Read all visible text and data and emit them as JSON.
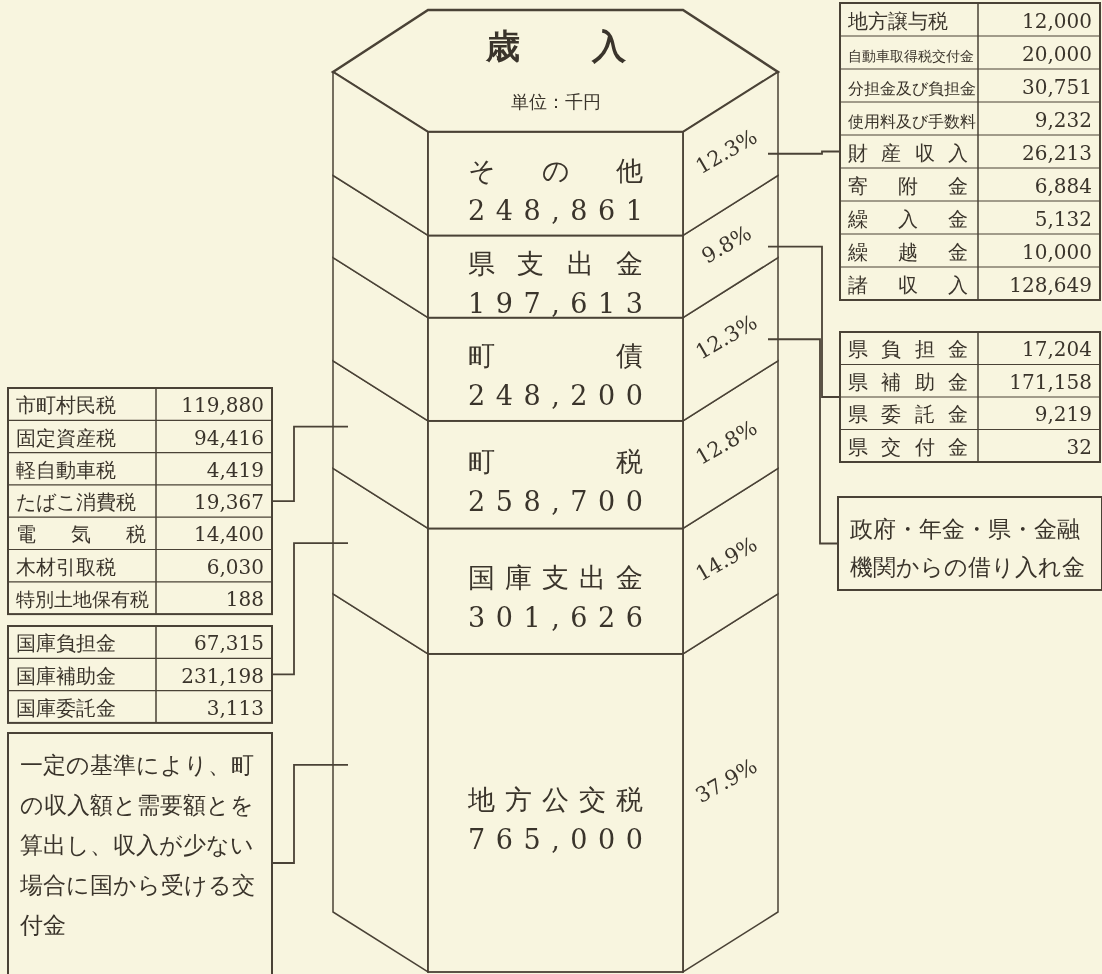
{
  "chart_data": {
    "type": "bar",
    "stacked": true,
    "title": "歳　入",
    "subtitle": "単位：千円",
    "categories": [
      null
    ],
    "series": [
      {
        "name": "地方公交税",
        "color": "#f8f5df",
        "values": [
          765000
        ],
        "value_labels": [
          "765,000"
        ]
      },
      {
        "name": "国庫支出金",
        "color": "#f8f5df",
        "values": [
          301626
        ],
        "value_labels": [
          "301,626"
        ]
      },
      {
        "name": "町税",
        "color": "#f8f5df",
        "values": [
          258700
        ],
        "value_labels": [
          "258,700"
        ]
      },
      {
        "name": "町債",
        "color": "#f8f5df",
        "values": [
          248200
        ],
        "value_labels": [
          "248,200"
        ]
      },
      {
        "name": "県支出金",
        "color": "#f8f5df",
        "values": [
          197613
        ],
        "value_labels": [
          "197,613"
        ]
      },
      {
        "name": "その他",
        "color": "#f8f5df",
        "values": [
          248861
        ],
        "value_labels": [
          "248,861"
        ]
      }
    ],
    "annotations": [
      "地方譲与税",
      "12,000",
      "自動車取得税交付金",
      "20,000",
      "分担金及び負担金",
      "30,751",
      "使用料及び手数料",
      "9,232",
      "財産収入",
      "26,213",
      "寄附金",
      "6,884",
      "繰入金",
      "5,132",
      "繰越金",
      "10,000",
      "諸収入",
      "128,649",
      "県負担金",
      "17,204",
      "県補助金",
      "171,158",
      "県委託金",
      "9,219",
      "県交付金",
      "32",
      "政府・年金・県・金融機関からの借り入れ金",
      "市町村民税",
      "119,880",
      "固定資産税",
      "94,416",
      "軽自動車税",
      "4,419",
      "たばこ消費税",
      "19,367",
      "電気税",
      "14,400",
      "木材引取税",
      "6,030",
      "特別土地保有税",
      "188",
      "国庫負担金",
      "67,315",
      "国庫補助金",
      "231,198",
      "国庫委託金",
      "3,113",
      "一定の基準により、町の収入額と需要額とを算出し、収入が少ない場合に国から受ける交付金",
      "37.9%",
      "14.9%",
      "12.8%",
      "12.3%",
      "9.8%",
      "12.3%"
    ]
  }
}
